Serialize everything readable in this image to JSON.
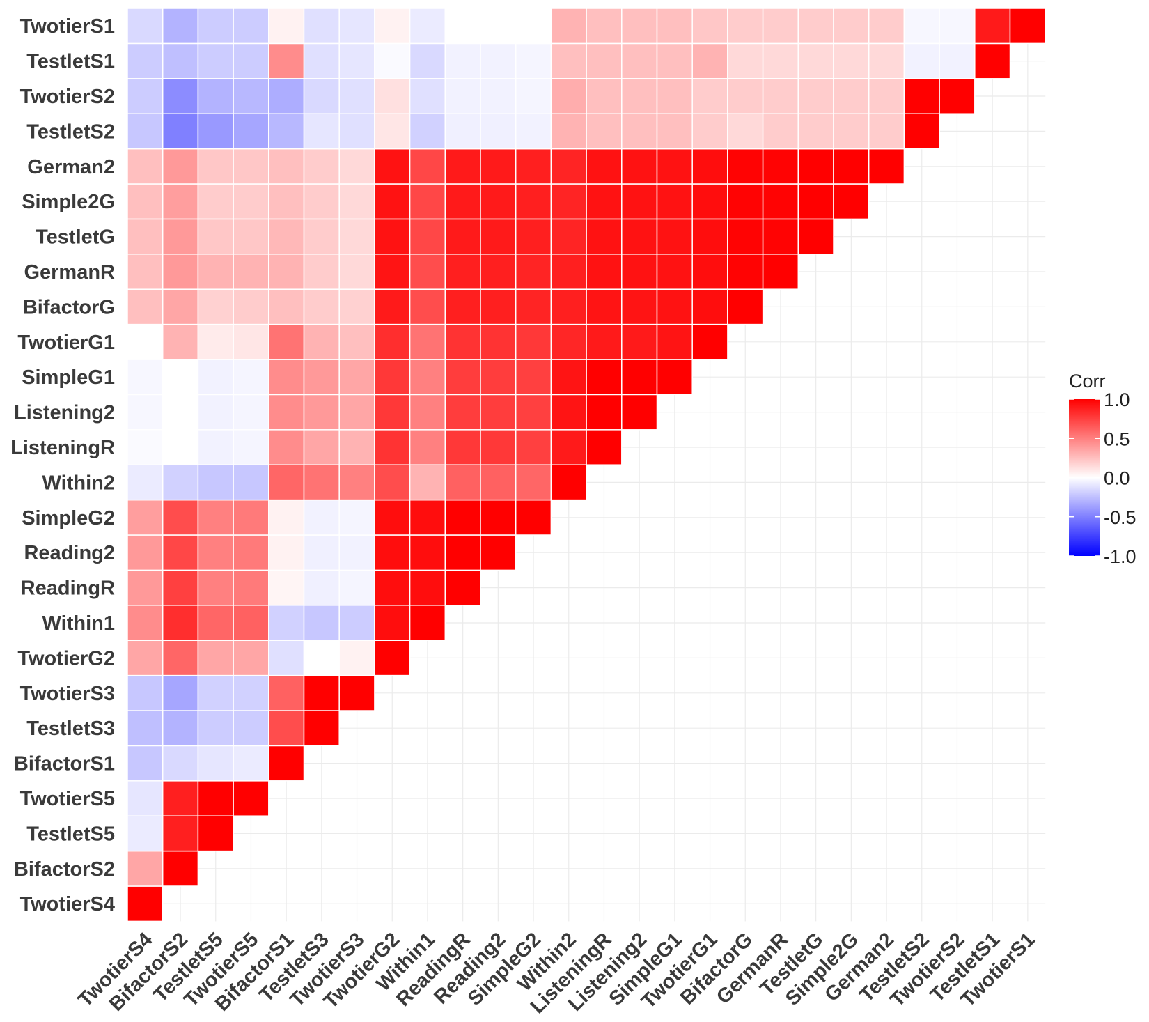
{
  "chart_data": {
    "type": "heatmap",
    "title": "",
    "xlabel": "",
    "ylabel": "",
    "variables": [
      "TwotierS4",
      "BifactorS2",
      "TestletS5",
      "TwotierS5",
      "BifactorS1",
      "TestletS3",
      "TwotierS3",
      "TwotierG2",
      "Within1",
      "ReadingR",
      "Reading2",
      "SimpleG2",
      "Within2",
      "ListeningR",
      "Listening2",
      "SimpleG1",
      "TwotierG1",
      "BifactorG",
      "GermanR",
      "TestletG",
      "Simple2G",
      "German2",
      "TestletS2",
      "TwotierS2",
      "TestletS1",
      "TwotierS1"
    ],
    "legend": {
      "title": "Corr",
      "position": "right",
      "ticks": [
        1.0,
        0.5,
        0.0,
        -0.5,
        -1.0
      ],
      "tick_labels": [
        "1.0",
        "0.5",
        "0.0",
        "-0.5",
        "-1.0"
      ],
      "low_color": "#0000ff",
      "mid_color": "#ffffff",
      "high_color": "#ff0000",
      "limits": [
        -1,
        1
      ]
    },
    "grid": true,
    "matrix": [
      [
        1.0
      ],
      [
        0.35,
        1.0
      ],
      [
        -0.08,
        0.88,
        1.0
      ],
      [
        -0.1,
        0.88,
        1.0,
        1.0
      ],
      [
        -0.22,
        -0.15,
        -0.1,
        -0.08,
        1.0
      ],
      [
        -0.25,
        -0.3,
        -0.2,
        -0.2,
        0.7,
        1.0
      ],
      [
        -0.22,
        -0.35,
        -0.18,
        -0.18,
        0.62,
        1.0,
        1.0
      ],
      [
        0.35,
        0.6,
        0.35,
        0.35,
        -0.12,
        0.0,
        0.05,
        1.0
      ],
      [
        0.45,
        0.82,
        0.6,
        0.62,
        -0.18,
        -0.22,
        -0.2,
        0.95,
        1.0
      ],
      [
        0.4,
        0.75,
        0.5,
        0.52,
        0.04,
        -0.06,
        -0.04,
        0.95,
        0.95,
        1.0
      ],
      [
        0.4,
        0.72,
        0.5,
        0.52,
        0.05,
        -0.06,
        -0.05,
        0.95,
        0.95,
        1.0,
        1.0
      ],
      [
        0.38,
        0.7,
        0.5,
        0.52,
        0.05,
        -0.05,
        -0.04,
        0.95,
        0.95,
        1.0,
        1.0,
        1.0
      ],
      [
        -0.08,
        -0.18,
        -0.22,
        -0.22,
        0.6,
        0.55,
        0.5,
        0.7,
        0.3,
        0.62,
        0.62,
        0.6,
        1.0
      ],
      [
        -0.02,
        0.0,
        -0.05,
        -0.04,
        0.45,
        0.35,
        0.3,
        0.8,
        0.5,
        0.78,
        0.78,
        0.75,
        0.9,
        1.0
      ],
      [
        -0.03,
        0.0,
        -0.05,
        -0.04,
        0.45,
        0.4,
        0.35,
        0.78,
        0.5,
        0.76,
        0.76,
        0.75,
        0.92,
        1.0,
        1.0
      ],
      [
        -0.03,
        0.0,
        -0.05,
        -0.04,
        0.45,
        0.4,
        0.35,
        0.78,
        0.5,
        0.76,
        0.76,
        0.75,
        0.92,
        1.0,
        1.0,
        1.0
      ],
      [
        0.0,
        0.3,
        0.08,
        0.1,
        0.55,
        0.3,
        0.25,
        0.82,
        0.55,
        0.8,
        0.8,
        0.78,
        0.85,
        0.9,
        0.9,
        0.92,
        1.0
      ],
      [
        0.25,
        0.35,
        0.18,
        0.2,
        0.25,
        0.2,
        0.18,
        0.9,
        0.7,
        0.88,
        0.88,
        0.86,
        0.88,
        0.92,
        0.92,
        0.93,
        0.95,
        1.0
      ],
      [
        0.25,
        0.4,
        0.3,
        0.3,
        0.3,
        0.2,
        0.15,
        0.92,
        0.7,
        0.88,
        0.88,
        0.86,
        0.88,
        0.93,
        0.93,
        0.93,
        0.95,
        0.99,
        1.0
      ],
      [
        0.25,
        0.4,
        0.22,
        0.22,
        0.28,
        0.2,
        0.15,
        0.93,
        0.72,
        0.9,
        0.9,
        0.88,
        0.86,
        0.93,
        0.93,
        0.93,
        0.95,
        0.99,
        0.99,
        1.0
      ],
      [
        0.25,
        0.38,
        0.2,
        0.2,
        0.25,
        0.2,
        0.15,
        0.93,
        0.72,
        0.9,
        0.9,
        0.88,
        0.86,
        0.93,
        0.93,
        0.93,
        0.95,
        0.99,
        0.99,
        1.0,
        1.0
      ],
      [
        0.25,
        0.4,
        0.22,
        0.22,
        0.25,
        0.2,
        0.15,
        0.93,
        0.72,
        0.9,
        0.9,
        0.88,
        0.86,
        0.93,
        0.93,
        0.93,
        0.95,
        0.99,
        0.99,
        1.0,
        1.0,
        1.0
      ],
      [
        -0.22,
        -0.5,
        -0.4,
        -0.35,
        -0.28,
        -0.1,
        -0.12,
        0.1,
        -0.18,
        -0.06,
        -0.06,
        -0.05,
        0.3,
        0.25,
        0.25,
        0.25,
        0.2,
        0.15,
        0.2,
        0.2,
        0.2,
        0.2,
        1.0
      ],
      [
        -0.2,
        -0.45,
        -0.3,
        -0.28,
        -0.32,
        -0.15,
        -0.12,
        0.12,
        -0.12,
        -0.05,
        -0.05,
        -0.04,
        0.32,
        0.25,
        0.25,
        0.25,
        0.2,
        0.2,
        0.2,
        0.2,
        0.2,
        0.2,
        1.0,
        1.0
      ],
      [
        -0.2,
        -0.25,
        -0.2,
        -0.2,
        0.45,
        -0.12,
        -0.1,
        -0.02,
        -0.15,
        -0.05,
        -0.05,
        -0.04,
        0.25,
        0.25,
        0.25,
        0.25,
        0.3,
        0.15,
        0.15,
        0.15,
        0.15,
        0.15,
        -0.05,
        -0.05,
        1.0
      ],
      [
        -0.15,
        -0.3,
        -0.2,
        -0.2,
        0.05,
        -0.12,
        -0.1,
        0.05,
        -0.08,
        0.0,
        0.0,
        0.0,
        0.3,
        0.25,
        0.25,
        0.25,
        0.22,
        0.2,
        0.2,
        0.2,
        0.2,
        0.2,
        -0.03,
        -0.03,
        0.9,
        1.0
      ]
    ]
  }
}
